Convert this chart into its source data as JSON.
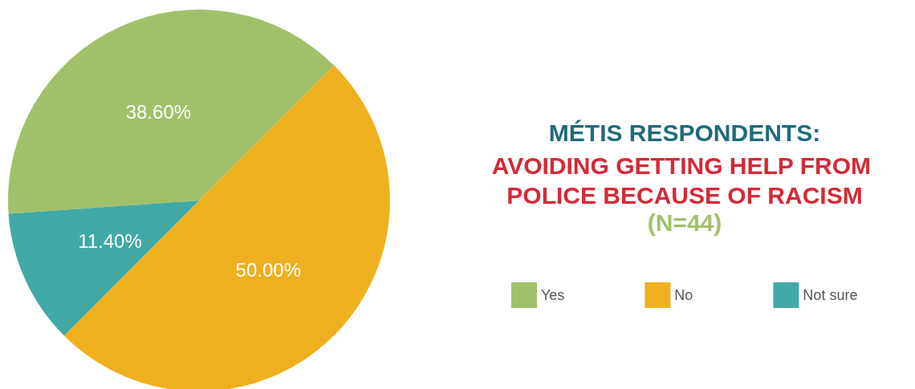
{
  "chart_data": {
    "type": "pie",
    "title": "MÉTIS RESPONDENTS:",
    "subtitle": "AVOIDING GETTING HELP FROM POLICE BECAUSE OF RACISM",
    "annotations": [
      "(N=44)"
    ],
    "categories": [
      "Yes",
      "No",
      "Not sure"
    ],
    "values": [
      38.6,
      50.0,
      11.4
    ],
    "colors": [
      "#a0c16a",
      "#efb020",
      "#41a9a5"
    ],
    "value_labels": [
      "38.60%",
      "50.00%",
      "11.40%"
    ],
    "legend": "right"
  }
}
